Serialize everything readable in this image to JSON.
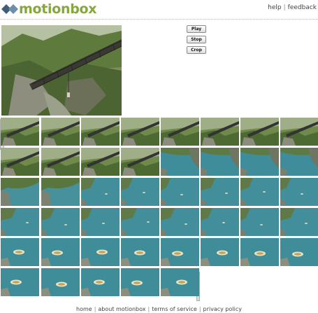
{
  "header": {
    "logo_text": "motionbox",
    "nav": {
      "help": "help",
      "separator": "|",
      "feedback": "feedback"
    }
  },
  "controls": {
    "play": "Play",
    "stop": "Stop",
    "crop": "Crop"
  },
  "grid": {
    "scenes": [
      "bridge",
      "bridge",
      "bridge",
      "bridge",
      "bridge",
      "bridge",
      "bridge",
      "bridge",
      "bridge",
      "bridge",
      "bridge",
      "bridge",
      "water-cliff",
      "water-cliff",
      "water-cliff",
      "water-cliff",
      "cliff-water",
      "cliff-water",
      "water",
      "water",
      "water",
      "water",
      "water",
      "water",
      "water",
      "water",
      "water",
      "water",
      "water",
      "water",
      "water",
      "water",
      "raft",
      "raft",
      "raft",
      "raft",
      "raft",
      "raft",
      "raft",
      "raft",
      "raft",
      "raft",
      "raft",
      "raft",
      "raft"
    ]
  },
  "footer": {
    "home": "home",
    "about": "about motionbox",
    "terms": "terms of service",
    "privacy": "privacy policy",
    "separator": "|"
  }
}
